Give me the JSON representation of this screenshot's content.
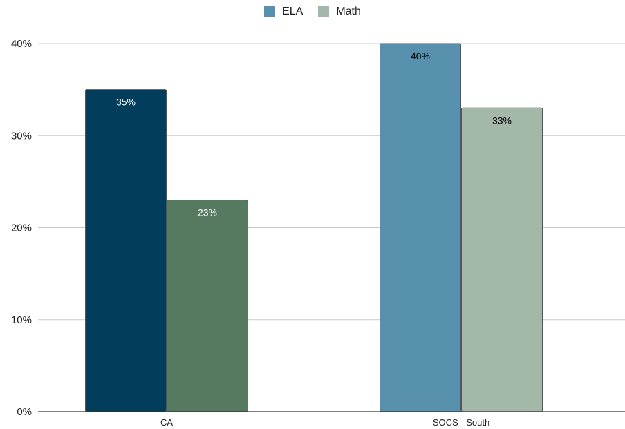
{
  "chart_data": {
    "type": "bar",
    "categories": [
      "CA",
      "SOCS - South"
    ],
    "series": [
      {
        "name": "ELA",
        "values": [
          35,
          40
        ],
        "bar_colors": [
          "#023e5c",
          "#5791ad"
        ],
        "label_colors": [
          "#ffffff",
          "#000000"
        ],
        "legend_color": "#5791ad"
      },
      {
        "name": "Math",
        "values": [
          23,
          33
        ],
        "bar_colors": [
          "#557a60",
          "#a3b8a9"
        ],
        "label_colors": [
          "#ffffff",
          "#000000"
        ],
        "legend_color": "#a3b8a9"
      }
    ],
    "data_labels": [
      [
        "35%",
        "40%"
      ],
      [
        "23%",
        "33%"
      ]
    ],
    "y_ticks": [
      "0%",
      "10%",
      "20%",
      "30%",
      "40%"
    ],
    "ylim": [
      0,
      40
    ],
    "grid": true,
    "legend_position": "top",
    "title": "",
    "xlabel": "",
    "ylabel": ""
  }
}
